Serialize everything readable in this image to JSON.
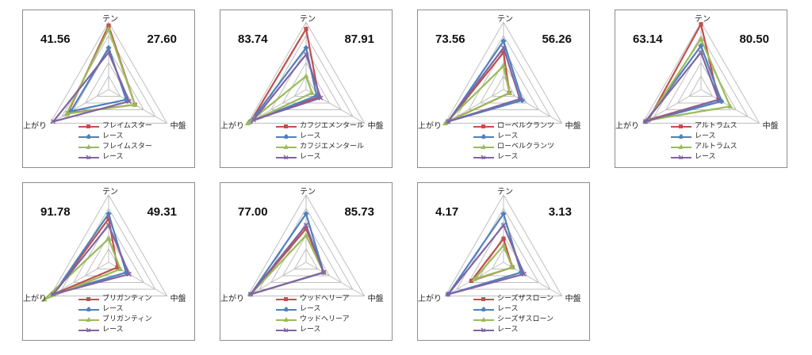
{
  "colors": {
    "red": "#c0504d",
    "blue": "#4f81bd",
    "green": "#9bbb59",
    "purple": "#8064a2"
  },
  "chart_data": [
    {
      "type": "radar",
      "axes": [
        "テン",
        "中盤",
        "上がり"
      ],
      "range": [
        0,
        1
      ],
      "score_left": "41.56",
      "score_right": "27.60",
      "series": [
        {
          "name": "フレイムスター",
          "color": "red",
          "marker": "square",
          "values": [
            0.95,
            0.45,
            0.7
          ]
        },
        {
          "name": "レース",
          "color": "blue",
          "marker": "diamond",
          "values": [
            0.62,
            0.3,
            0.65
          ]
        },
        {
          "name": "フレイムスター",
          "color": "green",
          "marker": "triangle",
          "values": [
            0.9,
            0.45,
            0.72
          ]
        },
        {
          "name": "レース",
          "color": "purple",
          "marker": "x",
          "values": [
            0.55,
            0.35,
            0.95
          ]
        }
      ]
    },
    {
      "type": "radar",
      "axes": [
        "テン",
        "中盤",
        "上がり"
      ],
      "range": [
        0,
        1
      ],
      "score_left": "83.74",
      "score_right": "87.91",
      "series": [
        {
          "name": "カフジエメンタール",
          "color": "red",
          "marker": "square",
          "values": [
            0.9,
            0.22,
            0.95
          ]
        },
        {
          "name": "レース",
          "color": "blue",
          "marker": "diamond",
          "values": [
            0.62,
            0.18,
            0.95
          ]
        },
        {
          "name": "カフジエメンタール",
          "color": "green",
          "marker": "triangle",
          "values": [
            0.2,
            0.1,
            1.0
          ]
        },
        {
          "name": "レース",
          "color": "purple",
          "marker": "x",
          "values": [
            0.52,
            0.25,
            0.9
          ]
        }
      ]
    },
    {
      "type": "radar",
      "axes": [
        "テン",
        "中盤",
        "上がり"
      ],
      "range": [
        0,
        1
      ],
      "score_left": "73.56",
      "score_right": "56.26",
      "series": [
        {
          "name": "ローベルクランツ",
          "color": "red",
          "marker": "square",
          "values": [
            0.55,
            0.1,
            0.95
          ]
        },
        {
          "name": "レース",
          "color": "blue",
          "marker": "diamond",
          "values": [
            0.72,
            0.32,
            0.95
          ]
        },
        {
          "name": "ローベルクランツ",
          "color": "green",
          "marker": "triangle",
          "values": [
            0.35,
            0.1,
            1.0
          ]
        },
        {
          "name": "レース",
          "color": "purple",
          "marker": "x",
          "values": [
            0.62,
            0.28,
            0.95
          ]
        }
      ]
    },
    {
      "type": "radar",
      "axes": [
        "テン",
        "中盤",
        "上がり"
      ],
      "range": [
        0,
        1
      ],
      "score_left": "63.14",
      "score_right": "80.50",
      "series": [
        {
          "name": "アルトラムス",
          "color": "red",
          "marker": "square",
          "values": [
            0.97,
            0.3,
            0.9
          ]
        },
        {
          "name": "レース",
          "color": "blue",
          "marker": "diamond",
          "values": [
            0.65,
            0.35,
            0.95
          ]
        },
        {
          "name": "アルトラムス",
          "color": "green",
          "marker": "triangle",
          "values": [
            0.75,
            0.5,
            0.92
          ]
        },
        {
          "name": "レース",
          "color": "purple",
          "marker": "x",
          "values": [
            0.55,
            0.3,
            0.95
          ]
        }
      ]
    },
    {
      "type": "radar",
      "axes": [
        "テン",
        "中盤",
        "上がり"
      ],
      "range": [
        0,
        1
      ],
      "score_left": "91.78",
      "score_right": "49.31",
      "series": [
        {
          "name": "ブリガンティン",
          "color": "red",
          "marker": "square",
          "values": [
            0.65,
            0.15,
            0.95
          ]
        },
        {
          "name": "レース",
          "color": "blue",
          "marker": "diamond",
          "values": [
            0.72,
            0.3,
            0.95
          ]
        },
        {
          "name": "ブリガンティン",
          "color": "green",
          "marker": "triangle",
          "values": [
            0.35,
            0.2,
            1.1
          ]
        },
        {
          "name": "レース",
          "color": "purple",
          "marker": "x",
          "values": [
            0.55,
            0.35,
            0.95
          ]
        }
      ]
    },
    {
      "type": "radar",
      "axes": [
        "テン",
        "中盤",
        "上がり"
      ],
      "range": [
        0,
        1
      ],
      "score_left": "77.00",
      "score_right": "85.73",
      "series": [
        {
          "name": "ウッドヘリーア",
          "color": "red",
          "marker": "square",
          "values": [
            0.5,
            0.3,
            0.95
          ]
        },
        {
          "name": "レース",
          "color": "blue",
          "marker": "diamond",
          "values": [
            0.72,
            0.3,
            0.95
          ]
        },
        {
          "name": "ウッドヘリーア",
          "color": "green",
          "marker": "triangle",
          "values": [
            0.4,
            0.3,
            0.95
          ]
        },
        {
          "name": "レース",
          "color": "purple",
          "marker": "x",
          "values": [
            0.55,
            0.3,
            0.95
          ]
        }
      ]
    },
    {
      "type": "radar",
      "axes": [
        "テン",
        "中盤",
        "上がり"
      ],
      "range": [
        0,
        1
      ],
      "score_left": "4.17",
      "score_right": "3.13",
      "series": [
        {
          "name": "シーズザスローン",
          "color": "red",
          "marker": "square",
          "values": [
            0.35,
            0.15,
            0.55
          ]
        },
        {
          "name": "レース",
          "color": "blue",
          "marker": "diamond",
          "values": [
            0.72,
            0.3,
            0.95
          ]
        },
        {
          "name": "シーズザスローン",
          "color": "green",
          "marker": "triangle",
          "values": [
            0.25,
            0.15,
            0.5
          ]
        },
        {
          "name": "レース",
          "color": "purple",
          "marker": "x",
          "values": [
            0.55,
            0.35,
            0.95
          ]
        }
      ]
    }
  ]
}
